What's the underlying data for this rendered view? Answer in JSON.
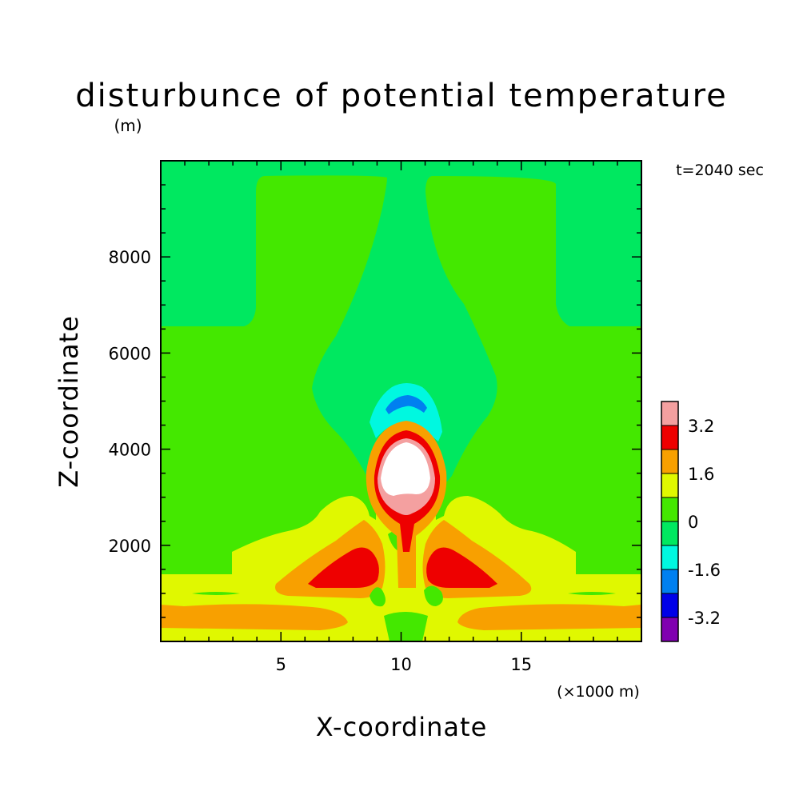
{
  "chart_data": {
    "type": "heatmap",
    "title": "disturbunce of potential temperature",
    "yunit": "(m)",
    "time_label": "t=2040 sec",
    "xlabel": "X-coordinate",
    "ylabel": "Z-coordinate",
    "xunit": "(×1000 m)",
    "xlim": [
      0,
      20
    ],
    "ylim": [
      0,
      10000
    ],
    "xticks": [
      5,
      10,
      15
    ],
    "xtick_labels": [
      "5",
      "10",
      "15"
    ],
    "yticks": [
      2000,
      4000,
      6000,
      8000
    ],
    "ytick_labels": [
      "2000",
      "4000",
      "6000",
      "8000"
    ],
    "colorbar": {
      "levels": [
        {
          "min": 3.2,
          "max": 4.0,
          "color": "#f4a0a0"
        },
        {
          "min": 2.4,
          "max": 3.2,
          "color": "#ee0000"
        },
        {
          "min": 1.6,
          "max": 2.4,
          "color": "#f8a000"
        },
        {
          "min": 0.8,
          "max": 1.6,
          "color": "#e0f800"
        },
        {
          "min": 0.0,
          "max": 0.8,
          "color": "#44e800"
        },
        {
          "min": -0.8,
          "max": 0.0,
          "color": "#00e860"
        },
        {
          "min": -1.6,
          "max": -0.8,
          "color": "#00f8e0"
        },
        {
          "min": -2.4,
          "max": -1.6,
          "color": "#0080f0"
        },
        {
          "min": -3.2,
          "max": -2.4,
          "color": "#0000e8"
        },
        {
          "min": -4.0,
          "max": -3.2,
          "color": "#8000b0"
        }
      ],
      "labels": [
        "3.2",
        "1.6",
        "0",
        "-1.6",
        "-3.2"
      ],
      "label_values": [
        3.2,
        1.6,
        0,
        -1.6,
        -3.2
      ],
      "above_max_color": "#ffffff"
    }
  }
}
